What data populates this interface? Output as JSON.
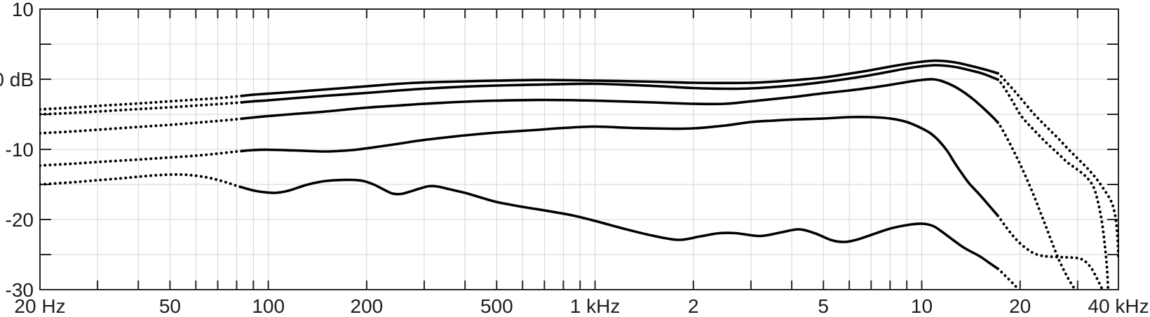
{
  "style": {
    "background": "#ffffff",
    "curve_color": "#000000",
    "axis_color": "#262626",
    "grid_color": "#d4d4d4",
    "label_color": "#1d1d1d"
  },
  "chart_data": {
    "type": "line",
    "title": "",
    "xlabel": "",
    "ylabel": "",
    "x_scale": "log",
    "x_unit": "Hz",
    "y_unit": "dB",
    "xlim": [
      20,
      40000
    ],
    "ylim": [
      -30,
      10
    ],
    "grid": true,
    "legend": "none",
    "line_style_rule": {
      "solid_between_hz": [
        83,
        17100
      ],
      "dotted_outside": true
    },
    "x_ticks": [
      {
        "f": 20,
        "label": "20 Hz"
      },
      {
        "f": 30
      },
      {
        "f": 40
      },
      {
        "f": 50,
        "label": "50"
      },
      {
        "f": 60
      },
      {
        "f": 70
      },
      {
        "f": 80
      },
      {
        "f": 90
      },
      {
        "f": 100,
        "label": "100"
      },
      {
        "f": 200,
        "label": "200"
      },
      {
        "f": 300
      },
      {
        "f": 400
      },
      {
        "f": 500,
        "label": "500"
      },
      {
        "f": 600
      },
      {
        "f": 700
      },
      {
        "f": 800
      },
      {
        "f": 900
      },
      {
        "f": 1000,
        "label": "1 kHz"
      },
      {
        "f": 2000,
        "label": "2"
      },
      {
        "f": 3000
      },
      {
        "f": 4000
      },
      {
        "f": 5000,
        "label": "5"
      },
      {
        "f": 6000
      },
      {
        "f": 7000
      },
      {
        "f": 8000
      },
      {
        "f": 9000
      },
      {
        "f": 10000,
        "label": "10"
      },
      {
        "f": 20000,
        "label": "20"
      },
      {
        "f": 30000
      },
      {
        "f": 40000,
        "label": "40 kHz"
      }
    ],
    "y_ticks": [
      {
        "db": 10,
        "label": "10"
      },
      {
        "db": 5
      },
      {
        "db": 0,
        "label": "0 dB"
      },
      {
        "db": -5
      },
      {
        "db": -10,
        "label": "-10"
      },
      {
        "db": -15
      },
      {
        "db": -20,
        "label": "-20"
      },
      {
        "db": -25
      },
      {
        "db": -30,
        "label": "-30"
      }
    ],
    "series": [
      {
        "name": "response-curve-1",
        "points": [
          [
            20,
            -4.3
          ],
          [
            25,
            -4.05
          ],
          [
            30,
            -3.8
          ],
          [
            40,
            -3.45
          ],
          [
            50,
            -3.15
          ],
          [
            60,
            -2.9
          ],
          [
            70,
            -2.7
          ],
          [
            80,
            -2.45
          ],
          [
            90,
            -2.2
          ],
          [
            100,
            -2.05
          ],
          [
            120,
            -1.8
          ],
          [
            150,
            -1.45
          ],
          [
            200,
            -1.0
          ],
          [
            250,
            -0.65
          ],
          [
            300,
            -0.45
          ],
          [
            400,
            -0.3
          ],
          [
            500,
            -0.2
          ],
          [
            700,
            -0.1
          ],
          [
            1000,
            -0.2
          ],
          [
            1500,
            -0.35
          ],
          [
            2000,
            -0.5
          ],
          [
            3000,
            -0.5
          ],
          [
            4000,
            -0.15
          ],
          [
            5000,
            0.25
          ],
          [
            6000,
            0.8
          ],
          [
            7000,
            1.3
          ],
          [
            8000,
            1.8
          ],
          [
            9000,
            2.2
          ],
          [
            10000,
            2.5
          ],
          [
            11000,
            2.65
          ],
          [
            12000,
            2.55
          ],
          [
            13000,
            2.3
          ],
          [
            14000,
            1.95
          ],
          [
            15000,
            1.6
          ],
          [
            16000,
            1.25
          ],
          [
            17200,
            0.8
          ],
          [
            18000,
            -0.2
          ],
          [
            19000,
            -1.4
          ],
          [
            20000,
            -2.6
          ],
          [
            22000,
            -4.9
          ],
          [
            24000,
            -6.7
          ],
          [
            26000,
            -8.3
          ],
          [
            28000,
            -9.9
          ],
          [
            30000,
            -11.3
          ],
          [
            32000,
            -12.6
          ],
          [
            34000,
            -14.0
          ],
          [
            36000,
            -15.6
          ],
          [
            38000,
            -17.4
          ],
          [
            39000,
            -19.2
          ],
          [
            39600,
            -21.5
          ],
          [
            39900,
            -24.0
          ],
          [
            40000,
            -25.5
          ]
        ]
      },
      {
        "name": "response-curve-2",
        "points": [
          [
            20,
            -5.0
          ],
          [
            25,
            -4.8
          ],
          [
            30,
            -4.6
          ],
          [
            40,
            -4.25
          ],
          [
            50,
            -4.0
          ],
          [
            60,
            -3.75
          ],
          [
            70,
            -3.55
          ],
          [
            80,
            -3.35
          ],
          [
            90,
            -3.15
          ],
          [
            100,
            -3.0
          ],
          [
            120,
            -2.7
          ],
          [
            150,
            -2.35
          ],
          [
            200,
            -1.95
          ],
          [
            250,
            -1.6
          ],
          [
            300,
            -1.35
          ],
          [
            400,
            -1.05
          ],
          [
            500,
            -0.9
          ],
          [
            700,
            -0.75
          ],
          [
            1000,
            -0.65
          ],
          [
            1500,
            -0.95
          ],
          [
            2000,
            -1.25
          ],
          [
            2500,
            -1.35
          ],
          [
            3000,
            -1.3
          ],
          [
            4000,
            -0.9
          ],
          [
            5000,
            -0.4
          ],
          [
            6000,
            0.1
          ],
          [
            7000,
            0.6
          ],
          [
            8000,
            1.1
          ],
          [
            9000,
            1.55
          ],
          [
            10000,
            1.85
          ],
          [
            11000,
            2.0
          ],
          [
            12000,
            1.9
          ],
          [
            13000,
            1.65
          ],
          [
            14000,
            1.3
          ],
          [
            15000,
            0.95
          ],
          [
            16000,
            0.5
          ],
          [
            17200,
            -0.1
          ],
          [
            18000,
            -1.4
          ],
          [
            19000,
            -3.2
          ],
          [
            20000,
            -5.0
          ],
          [
            21000,
            -6.2
          ],
          [
            22000,
            -7.2
          ],
          [
            24000,
            -9.0
          ],
          [
            26000,
            -10.5
          ],
          [
            28000,
            -11.9
          ],
          [
            30000,
            -12.9
          ],
          [
            32000,
            -14.0
          ],
          [
            33500,
            -15.3
          ],
          [
            34500,
            -17.2
          ],
          [
            35500,
            -20.0
          ],
          [
            36300,
            -23.5
          ],
          [
            36900,
            -27.0
          ],
          [
            37200,
            -30
          ]
        ]
      },
      {
        "name": "response-curve-3",
        "points": [
          [
            20,
            -7.7
          ],
          [
            25,
            -7.45
          ],
          [
            30,
            -7.2
          ],
          [
            40,
            -6.8
          ],
          [
            50,
            -6.5
          ],
          [
            60,
            -6.2
          ],
          [
            70,
            -5.95
          ],
          [
            80,
            -5.7
          ],
          [
            90,
            -5.45
          ],
          [
            100,
            -5.25
          ],
          [
            120,
            -4.95
          ],
          [
            150,
            -4.6
          ],
          [
            200,
            -4.05
          ],
          [
            250,
            -3.75
          ],
          [
            300,
            -3.5
          ],
          [
            400,
            -3.2
          ],
          [
            500,
            -3.05
          ],
          [
            700,
            -2.95
          ],
          [
            1000,
            -3.05
          ],
          [
            1500,
            -3.3
          ],
          [
            2000,
            -3.5
          ],
          [
            2500,
            -3.5
          ],
          [
            3000,
            -3.15
          ],
          [
            4000,
            -2.55
          ],
          [
            5000,
            -2.0
          ],
          [
            6000,
            -1.6
          ],
          [
            7000,
            -1.2
          ],
          [
            8000,
            -0.8
          ],
          [
            9000,
            -0.4
          ],
          [
            10000,
            -0.1
          ],
          [
            10800,
            0.0
          ],
          [
            11500,
            -0.25
          ],
          [
            12500,
            -0.95
          ],
          [
            13500,
            -1.9
          ],
          [
            14500,
            -3.0
          ],
          [
            15500,
            -4.2
          ],
          [
            16500,
            -5.4
          ],
          [
            17200,
            -6.3
          ],
          [
            18000,
            -7.9
          ],
          [
            19000,
            -10.0
          ],
          [
            20000,
            -12.1
          ],
          [
            21000,
            -14.3
          ],
          [
            22000,
            -16.5
          ],
          [
            23000,
            -18.8
          ],
          [
            24000,
            -21.0
          ],
          [
            25000,
            -23.2
          ],
          [
            26000,
            -25.2
          ],
          [
            27000,
            -26.9
          ],
          [
            28000,
            -28.3
          ],
          [
            29000,
            -29.5
          ],
          [
            29500,
            -30
          ]
        ]
      },
      {
        "name": "response-curve-4",
        "points": [
          [
            20,
            -12.3
          ],
          [
            25,
            -12.05
          ],
          [
            30,
            -11.8
          ],
          [
            40,
            -11.45
          ],
          [
            50,
            -11.15
          ],
          [
            60,
            -10.9
          ],
          [
            70,
            -10.6
          ],
          [
            80,
            -10.3
          ],
          [
            90,
            -10.1
          ],
          [
            100,
            -10.05
          ],
          [
            120,
            -10.15
          ],
          [
            150,
            -10.3
          ],
          [
            180,
            -10.1
          ],
          [
            200,
            -9.85
          ],
          [
            250,
            -9.2
          ],
          [
            300,
            -8.65
          ],
          [
            400,
            -8.0
          ],
          [
            500,
            -7.6
          ],
          [
            650,
            -7.25
          ],
          [
            800,
            -6.95
          ],
          [
            1000,
            -6.75
          ],
          [
            1300,
            -6.95
          ],
          [
            1700,
            -7.05
          ],
          [
            2000,
            -7.0
          ],
          [
            2500,
            -6.6
          ],
          [
            3000,
            -6.1
          ],
          [
            3500,
            -5.9
          ],
          [
            4000,
            -5.75
          ],
          [
            5000,
            -5.6
          ],
          [
            6000,
            -5.4
          ],
          [
            7000,
            -5.4
          ],
          [
            8000,
            -5.6
          ],
          [
            9000,
            -6.1
          ],
          [
            10000,
            -7.0
          ],
          [
            10700,
            -7.8
          ],
          [
            11300,
            -8.8
          ],
          [
            12000,
            -10.3
          ],
          [
            12600,
            -11.9
          ],
          [
            13300,
            -13.5
          ],
          [
            14000,
            -14.9
          ],
          [
            15000,
            -16.4
          ],
          [
            16000,
            -17.9
          ],
          [
            17200,
            -19.6
          ],
          [
            18000,
            -20.9
          ],
          [
            19000,
            -22.3
          ],
          [
            20000,
            -23.4
          ],
          [
            21000,
            -24.2
          ],
          [
            22000,
            -24.8
          ],
          [
            23000,
            -25.1
          ],
          [
            24000,
            -25.25
          ],
          [
            26000,
            -25.35
          ],
          [
            28000,
            -25.4
          ],
          [
            30000,
            -25.5
          ],
          [
            31500,
            -25.9
          ],
          [
            33000,
            -26.9
          ],
          [
            34200,
            -28.2
          ],
          [
            35300,
            -29.5
          ],
          [
            35700,
            -30
          ]
        ]
      },
      {
        "name": "response-curve-5",
        "points": [
          [
            20,
            -15.0
          ],
          [
            25,
            -14.7
          ],
          [
            30,
            -14.4
          ],
          [
            35,
            -14.15
          ],
          [
            40,
            -13.9
          ],
          [
            45,
            -13.7
          ],
          [
            50,
            -13.6
          ],
          [
            55,
            -13.6
          ],
          [
            60,
            -13.75
          ],
          [
            65,
            -14.0
          ],
          [
            70,
            -14.35
          ],
          [
            75,
            -14.75
          ],
          [
            80,
            -15.2
          ],
          [
            85,
            -15.55
          ],
          [
            90,
            -15.85
          ],
          [
            95,
            -16.05
          ],
          [
            105,
            -16.2
          ],
          [
            115,
            -15.9
          ],
          [
            130,
            -15.1
          ],
          [
            145,
            -14.6
          ],
          [
            160,
            -14.4
          ],
          [
            180,
            -14.35
          ],
          [
            195,
            -14.5
          ],
          [
            210,
            -15.0
          ],
          [
            225,
            -15.7
          ],
          [
            240,
            -16.3
          ],
          [
            255,
            -16.35
          ],
          [
            270,
            -16.05
          ],
          [
            290,
            -15.6
          ],
          [
            310,
            -15.25
          ],
          [
            330,
            -15.3
          ],
          [
            360,
            -15.7
          ],
          [
            400,
            -16.2
          ],
          [
            450,
            -16.9
          ],
          [
            500,
            -17.5
          ],
          [
            600,
            -18.2
          ],
          [
            700,
            -18.7
          ],
          [
            850,
            -19.4
          ],
          [
            1000,
            -20.2
          ],
          [
            1200,
            -21.2
          ],
          [
            1500,
            -22.3
          ],
          [
            1800,
            -22.9
          ],
          [
            2100,
            -22.4
          ],
          [
            2400,
            -21.95
          ],
          [
            2700,
            -21.95
          ],
          [
            3200,
            -22.35
          ],
          [
            3700,
            -21.85
          ],
          [
            4200,
            -21.4
          ],
          [
            4700,
            -21.95
          ],
          [
            5300,
            -22.95
          ],
          [
            5800,
            -23.2
          ],
          [
            6300,
            -22.9
          ],
          [
            7000,
            -22.2
          ],
          [
            8000,
            -21.3
          ],
          [
            9000,
            -20.8
          ],
          [
            10000,
            -20.6
          ],
          [
            10800,
            -20.9
          ],
          [
            11500,
            -21.7
          ],
          [
            12500,
            -22.95
          ],
          [
            13500,
            -24.05
          ],
          [
            15000,
            -25.2
          ],
          [
            16000,
            -26.1
          ],
          [
            17200,
            -27.1
          ],
          [
            18000,
            -28.0
          ],
          [
            19000,
            -29.1
          ],
          [
            19800,
            -30
          ]
        ]
      }
    ]
  }
}
